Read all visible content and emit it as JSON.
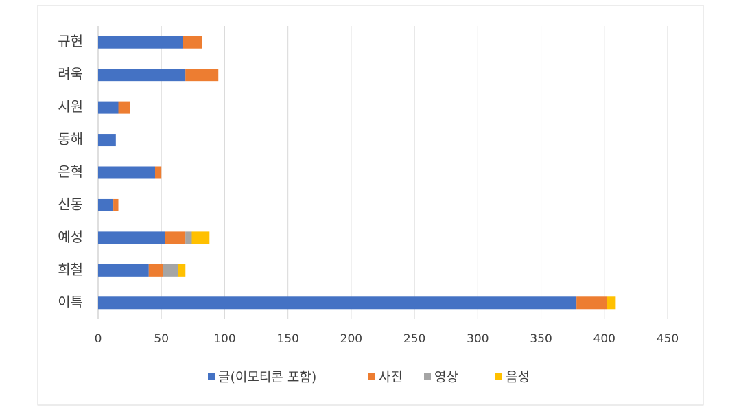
{
  "chart_data": {
    "type": "stacked-bar-horizontal",
    "categories": [
      "규현",
      "려욱",
      "시원",
      "동해",
      "은혁",
      "신동",
      "예성",
      "희철",
      "이특"
    ],
    "series": [
      {
        "name": "글(이모티콘 포함)",
        "color": "#4472c4",
        "values": [
          67,
          69,
          16,
          14,
          45,
          12,
          53,
          40,
          378
        ]
      },
      {
        "name": "사진",
        "color": "#ed7d31",
        "values": [
          15,
          26,
          9,
          0,
          5,
          4,
          16,
          11,
          24
        ]
      },
      {
        "name": "영상",
        "color": "#a5a5a5",
        "values": [
          0,
          0,
          0,
          0,
          0,
          0,
          5,
          12,
          0
        ]
      },
      {
        "name": "음성",
        "color": "#ffc000",
        "values": [
          0,
          0,
          0,
          0,
          0,
          0,
          14,
          6,
          7
        ]
      }
    ],
    "xlim": [
      0,
      450
    ],
    "xticks": [
      0,
      50,
      100,
      150,
      200,
      250,
      300,
      350,
      400,
      450
    ],
    "grid": true
  }
}
